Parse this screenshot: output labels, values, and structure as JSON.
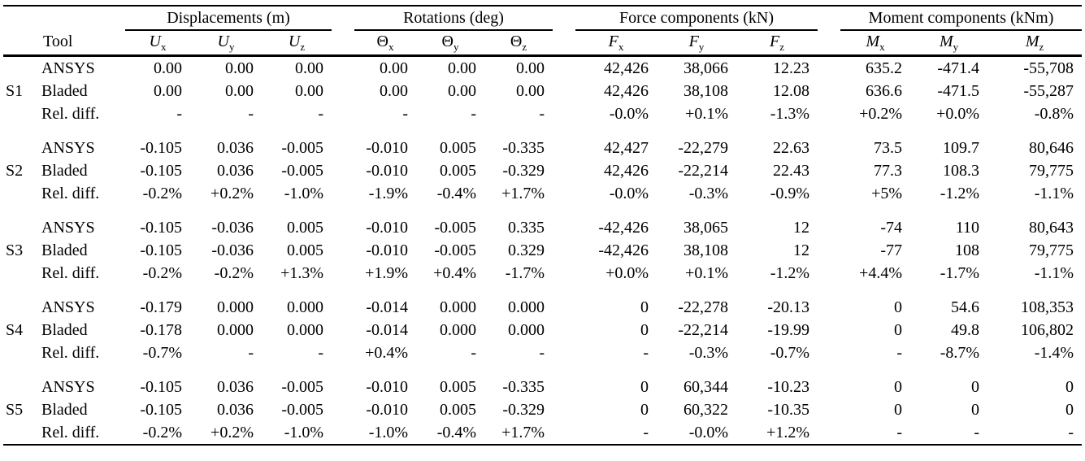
{
  "table": {
    "tool_header": "Tool",
    "groups": [
      {
        "label": "Displacements (m)"
      },
      {
        "label": "Rotations (deg)"
      },
      {
        "label": "Force components (kN)"
      },
      {
        "label": "Moment components (kNm)"
      }
    ],
    "columns": [
      {
        "id": "u-x",
        "base": "U",
        "sub": "x",
        "italic": true
      },
      {
        "id": "u-y",
        "base": "U",
        "sub": "y",
        "italic": true
      },
      {
        "id": "u-z",
        "base": "U",
        "sub": "z",
        "italic": true
      },
      {
        "id": "theta-x",
        "base": "Θ",
        "sub": "x",
        "italic": false
      },
      {
        "id": "theta-y",
        "base": "Θ",
        "sub": "y",
        "italic": false
      },
      {
        "id": "theta-z",
        "base": "Θ",
        "sub": "z",
        "italic": false
      },
      {
        "id": "f-x",
        "base": "F",
        "sub": "x",
        "italic": true
      },
      {
        "id": "f-y",
        "base": "F",
        "sub": "y",
        "italic": true
      },
      {
        "id": "f-z",
        "base": "F",
        "sub": "z",
        "italic": true
      },
      {
        "id": "m-x",
        "base": "M",
        "sub": "x",
        "italic": true
      },
      {
        "id": "m-y",
        "base": "M",
        "sub": "y",
        "italic": true
      },
      {
        "id": "m-z",
        "base": "M",
        "sub": "z",
        "italic": true
      }
    ],
    "blocks": [
      {
        "id": "S1",
        "rows": [
          {
            "tool": "ANSYS",
            "values": [
              "0.00",
              "0.00",
              "0.00",
              "0.00",
              "0.00",
              "0.00",
              "42,426",
              "38,066",
              "12.23",
              "635.2",
              "-471.4",
              "-55,708"
            ]
          },
          {
            "tool": "Bladed",
            "values": [
              "0.00",
              "0.00",
              "0.00",
              "0.00",
              "0.00",
              "0.00",
              "42,426",
              "38,108",
              "12.08",
              "636.6",
              "-471.5",
              "-55,287"
            ]
          },
          {
            "tool": "Rel. diff.",
            "values": [
              "-",
              "-",
              "-",
              "-",
              "-",
              "-",
              "-0.0%",
              "+0.1%",
              "-1.3%",
              "+0.2%",
              "+0.0%",
              "-0.8%"
            ]
          }
        ]
      },
      {
        "id": "S2",
        "rows": [
          {
            "tool": "ANSYS",
            "values": [
              "-0.105",
              "0.036",
              "-0.005",
              "-0.010",
              "0.005",
              "-0.335",
              "42,427",
              "-22,279",
              "22.63",
              "73.5",
              "109.7",
              "80,646"
            ]
          },
          {
            "tool": "Bladed",
            "values": [
              "-0.105",
              "0.036",
              "-0.005",
              "-0.010",
              "0.005",
              "-0.329",
              "42,426",
              "-22,214",
              "22.43",
              "77.3",
              "108.3",
              "79,775"
            ]
          },
          {
            "tool": "Rel. diff.",
            "values": [
              "-0.2%",
              "+0.2%",
              "-1.0%",
              "-1.9%",
              "-0.4%",
              "+1.7%",
              "-0.0%",
              "-0.3%",
              "-0.9%",
              "+5%",
              "-1.2%",
              "-1.1%"
            ]
          }
        ]
      },
      {
        "id": "S3",
        "rows": [
          {
            "tool": "ANSYS",
            "values": [
              "-0.105",
              "-0.036",
              "0.005",
              "-0.010",
              "-0.005",
              "0.335",
              "-42,426",
              "38,065",
              "12",
              "-74",
              "110",
              "80,643"
            ]
          },
          {
            "tool": "Bladed",
            "values": [
              "-0.105",
              "-0.036",
              "0.005",
              "-0.010",
              "-0.005",
              "0.329",
              "-42,426",
              "38,108",
              "12",
              "-77",
              "108",
              "79,775"
            ]
          },
          {
            "tool": "Rel. diff.",
            "values": [
              "-0.2%",
              "-0.2%",
              "+1.3%",
              "+1.9%",
              "+0.4%",
              "-1.7%",
              "+0.0%",
              "+0.1%",
              "-1.2%",
              "+4.4%",
              "-1.7%",
              "-1.1%"
            ]
          }
        ]
      },
      {
        "id": "S4",
        "rows": [
          {
            "tool": "ANSYS",
            "values": [
              "-0.179",
              "0.000",
              "0.000",
              "-0.014",
              "0.000",
              "0.000",
              "0",
              "-22,278",
              "-20.13",
              "0",
              "54.6",
              "108,353"
            ]
          },
          {
            "tool": "Bladed",
            "values": [
              "-0.178",
              "0.000",
              "0.000",
              "-0.014",
              "0.000",
              "0.000",
              "0",
              "-22,214",
              "-19.99",
              "0",
              "49.8",
              "106,802"
            ]
          },
          {
            "tool": "Rel. diff.",
            "values": [
              "-0.7%",
              "-",
              "-",
              "+0.4%",
              "-",
              "-",
              "-",
              "-0.3%",
              "-0.7%",
              "-",
              "-8.7%",
              "-1.4%"
            ]
          }
        ]
      },
      {
        "id": "S5",
        "rows": [
          {
            "tool": "ANSYS",
            "values": [
              "-0.105",
              "0.036",
              "-0.005",
              "-0.010",
              "0.005",
              "-0.335",
              "0",
              "60,344",
              "-10.23",
              "0",
              "0",
              "0"
            ]
          },
          {
            "tool": "Bladed",
            "values": [
              "-0.105",
              "0.036",
              "-0.005",
              "-0.010",
              "0.005",
              "-0.329",
              "0",
              "60,322",
              "-10.35",
              "0",
              "0",
              "0"
            ]
          },
          {
            "tool": "Rel. diff.",
            "values": [
              "-0.2%",
              "+0.2%",
              "-1.0%",
              "-1.0%",
              "-0.4%",
              "+1.7%",
              "-",
              "-0.0%",
              "+1.2%",
              "-",
              "-",
              "-"
            ]
          }
        ]
      }
    ]
  }
}
